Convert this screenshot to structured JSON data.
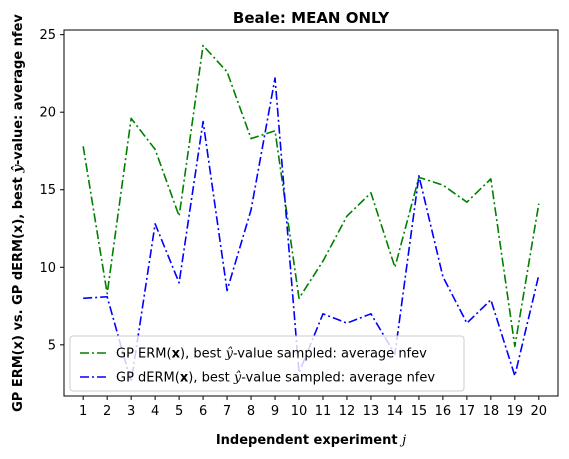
{
  "chart_data": {
    "type": "line",
    "title": "Beale: MEAN ONLY",
    "xlabel": "Independent experiment j",
    "ylabel": "GP ERM(x) vs. GP dERM(x), best ŷ-value: average nfev",
    "x": [
      1,
      2,
      3,
      4,
      5,
      6,
      7,
      8,
      9,
      10,
      11,
      12,
      13,
      14,
      15,
      16,
      17,
      18,
      19,
      20
    ],
    "xlim": [
      0.2,
      20.8
    ],
    "ylim": [
      1.7,
      25.3
    ],
    "yticks": [
      5,
      10,
      15,
      20,
      25
    ],
    "grid": false,
    "legend_position": "lower-left",
    "series": [
      {
        "name": "GP ERM(x), best ŷ-value sampled: average nfev",
        "color": "#008000",
        "dash": "dashdot",
        "values": [
          17.8,
          8.3,
          19.6,
          17.6,
          13.3,
          24.3,
          22.6,
          18.3,
          18.8,
          8.0,
          10.4,
          13.3,
          14.8,
          10.0,
          15.8,
          15.3,
          14.2,
          15.7,
          4.9,
          14.1
        ]
      },
      {
        "name": "GP dERM(x), best ŷ-value sampled: average nfev",
        "color": "#0000ff",
        "dash": "dashdot",
        "values": [
          8.0,
          8.1,
          2.6,
          12.8,
          9.0,
          19.4,
          8.5,
          13.7,
          22.2,
          3.2,
          7.0,
          6.4,
          7.0,
          4.4,
          15.9,
          9.4,
          6.4,
          7.9,
          3.0,
          9.5
        ]
      }
    ]
  }
}
